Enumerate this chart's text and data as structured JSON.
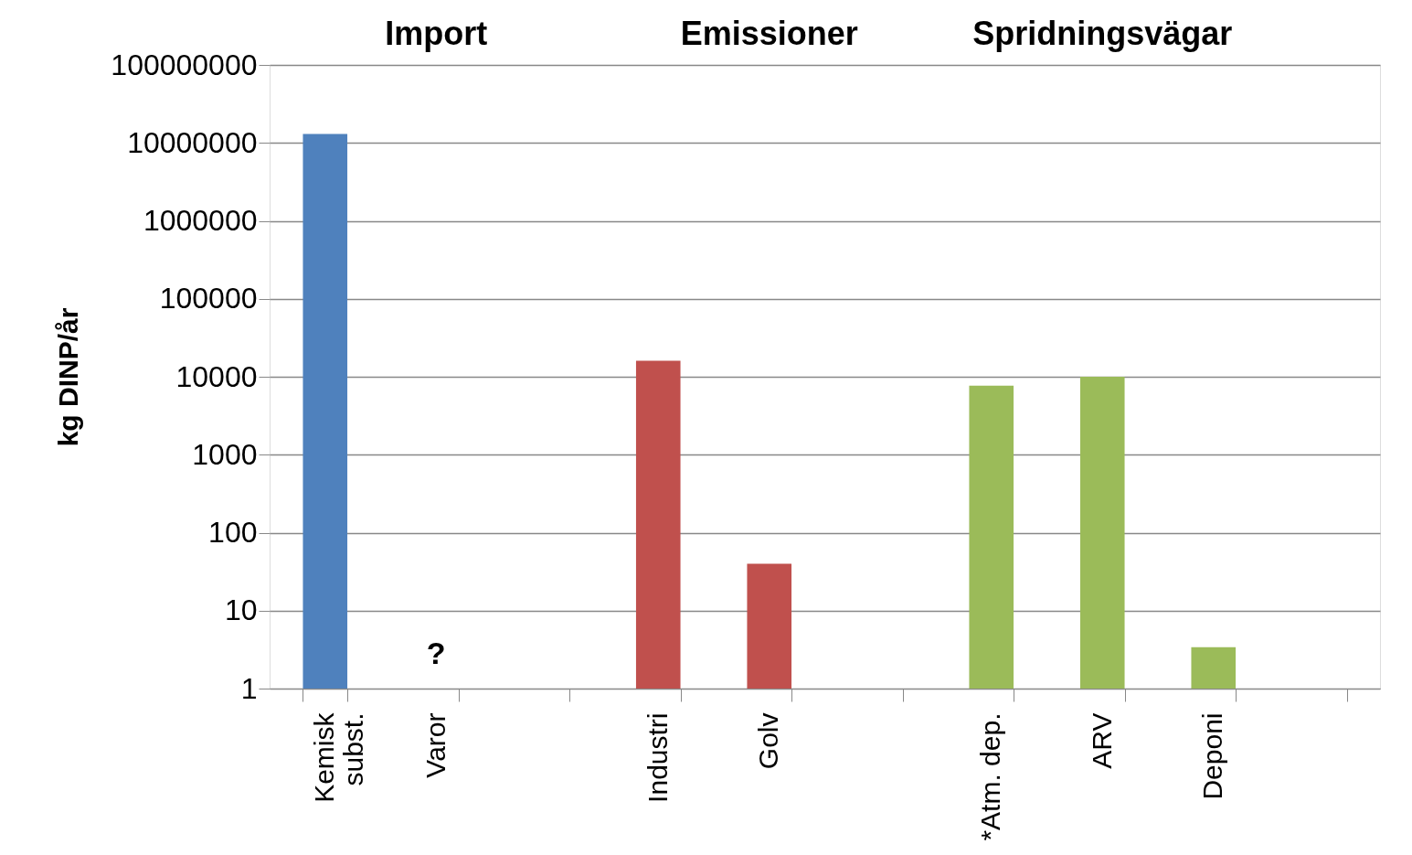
{
  "chart_data": {
    "type": "bar",
    "ylabel": "kg DINP/år",
    "categories": [
      "Kemisk subst.",
      "Varor",
      null,
      "Industri",
      "Golv",
      null,
      "*Atm. dep.",
      "ARV",
      "Deponi",
      null
    ],
    "values": [
      13000000,
      null,
      null,
      16000,
      40,
      null,
      7700,
      10000,
      3.4,
      null
    ],
    "colors": [
      "#4f81bd",
      null,
      null,
      "#c0504d",
      "#c0504d",
      null,
      "#9bbb59",
      "#9bbb59",
      "#9bbb59",
      null
    ],
    "log": true,
    "ylim": [
      1,
      100000000
    ],
    "yticks": [
      1,
      10,
      100,
      1000,
      10000,
      100000,
      1000000,
      10000000,
      100000000
    ],
    "grid": "y",
    "annotations": [
      "Import",
      "Emissioner",
      "Spridningsvägar",
      "?"
    ]
  }
}
